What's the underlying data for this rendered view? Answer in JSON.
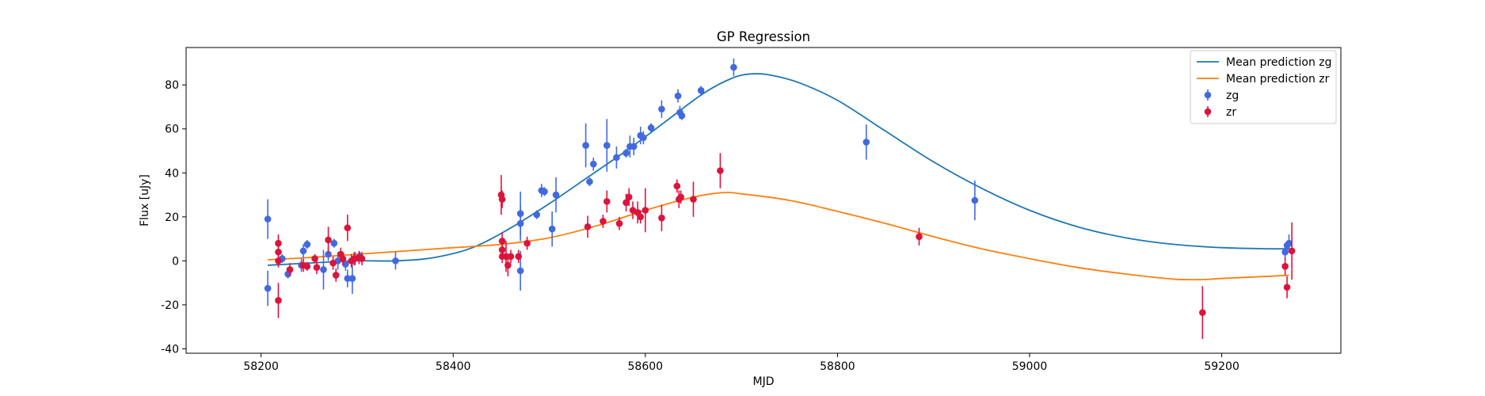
{
  "chart_data": {
    "type": "scatter",
    "title": "GP Regression",
    "xlabel": "MJD",
    "ylabel": "Flux [uJy]",
    "xlim": [
      58122,
      59324
    ],
    "ylim": [
      -42,
      97
    ],
    "xticks": [
      58200,
      58400,
      58600,
      58800,
      59000,
      59200
    ],
    "yticks": [
      -40,
      -20,
      0,
      20,
      40,
      60,
      80
    ],
    "grid": false,
    "legend_position": "top-right",
    "colors": {
      "zg_line": "#1f77b4",
      "zr_line": "#ff7f0e",
      "zg_points": "#4169e1",
      "zr_points": "#dc143c"
    },
    "lines": [
      {
        "name": "Mean prediction zg",
        "x": [
          58207,
          58250,
          58300,
          58340,
          58380,
          58420,
          58460,
          58500,
          58540,
          58580,
          58620,
          58660,
          58690,
          58710,
          58730,
          58760,
          58800,
          58850,
          58900,
          58950,
          59000,
          59050,
          59100,
          59150,
          59200,
          59250,
          59270
        ],
        "y": [
          -2,
          -1,
          0,
          0,
          1.5,
          6,
          15,
          26,
          38,
          50,
          63,
          76,
          83,
          85,
          84.5,
          81,
          73,
          59,
          45,
          33,
          23,
          15.5,
          10.5,
          7.5,
          6,
          5.5,
          5.5
        ]
      },
      {
        "name": "Mean prediction zr",
        "x": [
          58207,
          58250,
          58300,
          58350,
          58400,
          58450,
          58500,
          58550,
          58600,
          58650,
          58680,
          58700,
          58750,
          58800,
          58850,
          58900,
          58950,
          59000,
          59050,
          59100,
          59150,
          59180,
          59200,
          59250,
          59270
        ],
        "y": [
          0.5,
          1.5,
          3,
          4.5,
          6,
          7.5,
          10.5,
          16,
          23,
          29,
          31,
          30.5,
          27.5,
          22.5,
          17,
          11,
          5.5,
          1,
          -3,
          -6,
          -8.3,
          -8.5,
          -8,
          -7,
          -6.5
        ]
      }
    ],
    "series": [
      {
        "name": "zg",
        "points": [
          {
            "x": 58207,
            "y": 19,
            "err": 9
          },
          {
            "x": 58207,
            "y": -12.5,
            "err": 8
          },
          {
            "x": 58222,
            "y": 1,
            "err": 2
          },
          {
            "x": 58228,
            "y": -6,
            "err": 2
          },
          {
            "x": 58242,
            "y": -2,
            "err": 3
          },
          {
            "x": 58244,
            "y": 4.5,
            "err": 3
          },
          {
            "x": 58248,
            "y": 7.5,
            "err": 2
          },
          {
            "x": 58265,
            "y": -4,
            "err": 9
          },
          {
            "x": 58270,
            "y": 3,
            "err": 3
          },
          {
            "x": 58276,
            "y": 8,
            "err": 2
          },
          {
            "x": 58280,
            "y": 0,
            "err": 4
          },
          {
            "x": 58288,
            "y": -1.5,
            "err": 3
          },
          {
            "x": 58290,
            "y": -8,
            "err": 4
          },
          {
            "x": 58295,
            "y": -8,
            "err": 7
          },
          {
            "x": 58298,
            "y": 1,
            "err": 3
          },
          {
            "x": 58303,
            "y": 2,
            "err": 2
          },
          {
            "x": 58340,
            "y": 0,
            "err": 4
          },
          {
            "x": 58470,
            "y": 21.5,
            "err": 10
          },
          {
            "x": 58470,
            "y": 17,
            "err": 8
          },
          {
            "x": 58470,
            "y": -4.5,
            "err": 9
          },
          {
            "x": 58487,
            "y": 21,
            "err": 2
          },
          {
            "x": 58492,
            "y": 32,
            "err": 3
          },
          {
            "x": 58495,
            "y": 31.5,
            "err": 2
          },
          {
            "x": 58503,
            "y": 14.5,
            "err": 8
          },
          {
            "x": 58507,
            "y": 30,
            "err": 8
          },
          {
            "x": 58538,
            "y": 52.5,
            "err": 10
          },
          {
            "x": 58542,
            "y": 36,
            "err": 2
          },
          {
            "x": 58546,
            "y": 44,
            "err": 3
          },
          {
            "x": 58560,
            "y": 52.5,
            "err": 12
          },
          {
            "x": 58570,
            "y": 47,
            "err": 5
          },
          {
            "x": 58580,
            "y": 49,
            "err": 2
          },
          {
            "x": 58584,
            "y": 52,
            "err": 5
          },
          {
            "x": 58588,
            "y": 52,
            "err": 4
          },
          {
            "x": 58595,
            "y": 57,
            "err": 4
          },
          {
            "x": 58598,
            "y": 56,
            "err": 3
          },
          {
            "x": 58606,
            "y": 60.5,
            "err": 2
          },
          {
            "x": 58617,
            "y": 69,
            "err": 4
          },
          {
            "x": 58634,
            "y": 75,
            "err": 3
          },
          {
            "x": 58636,
            "y": 67.5,
            "err": 3
          },
          {
            "x": 58638,
            "y": 66,
            "err": 2
          },
          {
            "x": 58658,
            "y": 77.5,
            "err": 2
          },
          {
            "x": 58692,
            "y": 88,
            "err": 4
          },
          {
            "x": 58830,
            "y": 54,
            "err": 8
          },
          {
            "x": 58943,
            "y": 27.5,
            "err": 9
          },
          {
            "x": 59266,
            "y": 4,
            "err": 3
          },
          {
            "x": 59268,
            "y": 7,
            "err": 2
          },
          {
            "x": 59270,
            "y": 8,
            "err": 4
          }
        ]
      },
      {
        "name": "zr",
        "points": [
          {
            "x": 58218,
            "y": 8,
            "err": 4
          },
          {
            "x": 58218,
            "y": 4,
            "err": 3
          },
          {
            "x": 58218,
            "y": 0,
            "err": 3
          },
          {
            "x": 58218,
            "y": -18,
            "err": 8
          },
          {
            "x": 58230,
            "y": -4,
            "err": 3
          },
          {
            "x": 58244,
            "y": -2,
            "err": 3
          },
          {
            "x": 58248,
            "y": -2.5,
            "err": 2
          },
          {
            "x": 58256,
            "y": 1,
            "err": 2
          },
          {
            "x": 58258,
            "y": -3,
            "err": 3
          },
          {
            "x": 58270,
            "y": 9.5,
            "err": 6
          },
          {
            "x": 58275,
            "y": -1,
            "err": 3
          },
          {
            "x": 58278,
            "y": -6.5,
            "err": 3
          },
          {
            "x": 58283,
            "y": 3,
            "err": 3
          },
          {
            "x": 58285,
            "y": 1,
            "err": 3
          },
          {
            "x": 58290,
            "y": 15,
            "err": 6
          },
          {
            "x": 58294,
            "y": 0,
            "err": 3
          },
          {
            "x": 58297,
            "y": 1,
            "err": 3
          },
          {
            "x": 58302,
            "y": 1.5,
            "err": 3
          },
          {
            "x": 58305,
            "y": 1,
            "err": 3
          },
          {
            "x": 58450,
            "y": 30,
            "err": 9
          },
          {
            "x": 58451,
            "y": 28,
            "err": 4
          },
          {
            "x": 58451,
            "y": 9,
            "err": 4
          },
          {
            "x": 58451,
            "y": 5,
            "err": 3
          },
          {
            "x": 58451,
            "y": 2,
            "err": 3
          },
          {
            "x": 58455,
            "y": 2,
            "err": 7
          },
          {
            "x": 58457,
            "y": -2,
            "err": 5
          },
          {
            "x": 58460,
            "y": 2,
            "err": 3
          },
          {
            "x": 58468,
            "y": 2,
            "err": 3
          },
          {
            "x": 58477,
            "y": 8,
            "err": 3
          },
          {
            "x": 58540,
            "y": 15.5,
            "err": 5
          },
          {
            "x": 58556,
            "y": 18,
            "err": 3
          },
          {
            "x": 58560,
            "y": 27,
            "err": 5
          },
          {
            "x": 58573,
            "y": 17,
            "err": 3
          },
          {
            "x": 58580,
            "y": 26.5,
            "err": 4
          },
          {
            "x": 58583,
            "y": 29,
            "err": 4
          },
          {
            "x": 58587,
            "y": 23,
            "err": 4
          },
          {
            "x": 58592,
            "y": 22,
            "err": 5
          },
          {
            "x": 58595,
            "y": 20,
            "err": 3
          },
          {
            "x": 58600,
            "y": 23,
            "err": 10
          },
          {
            "x": 58617,
            "y": 19.5,
            "err": 6
          },
          {
            "x": 58633,
            "y": 34,
            "err": 3
          },
          {
            "x": 58635,
            "y": 28,
            "err": 4
          },
          {
            "x": 58637,
            "y": 29,
            "err": 3
          },
          {
            "x": 58650,
            "y": 28,
            "err": 8
          },
          {
            "x": 58678,
            "y": 41,
            "err": 8
          },
          {
            "x": 58885,
            "y": 11,
            "err": 4
          },
          {
            "x": 59180,
            "y": -23.5,
            "err": 12
          },
          {
            "x": 59266,
            "y": -2.5,
            "err": 4
          },
          {
            "x": 59268,
            "y": -12,
            "err": 5
          },
          {
            "x": 59273,
            "y": 4.5,
            "err": 13
          }
        ]
      }
    ]
  }
}
